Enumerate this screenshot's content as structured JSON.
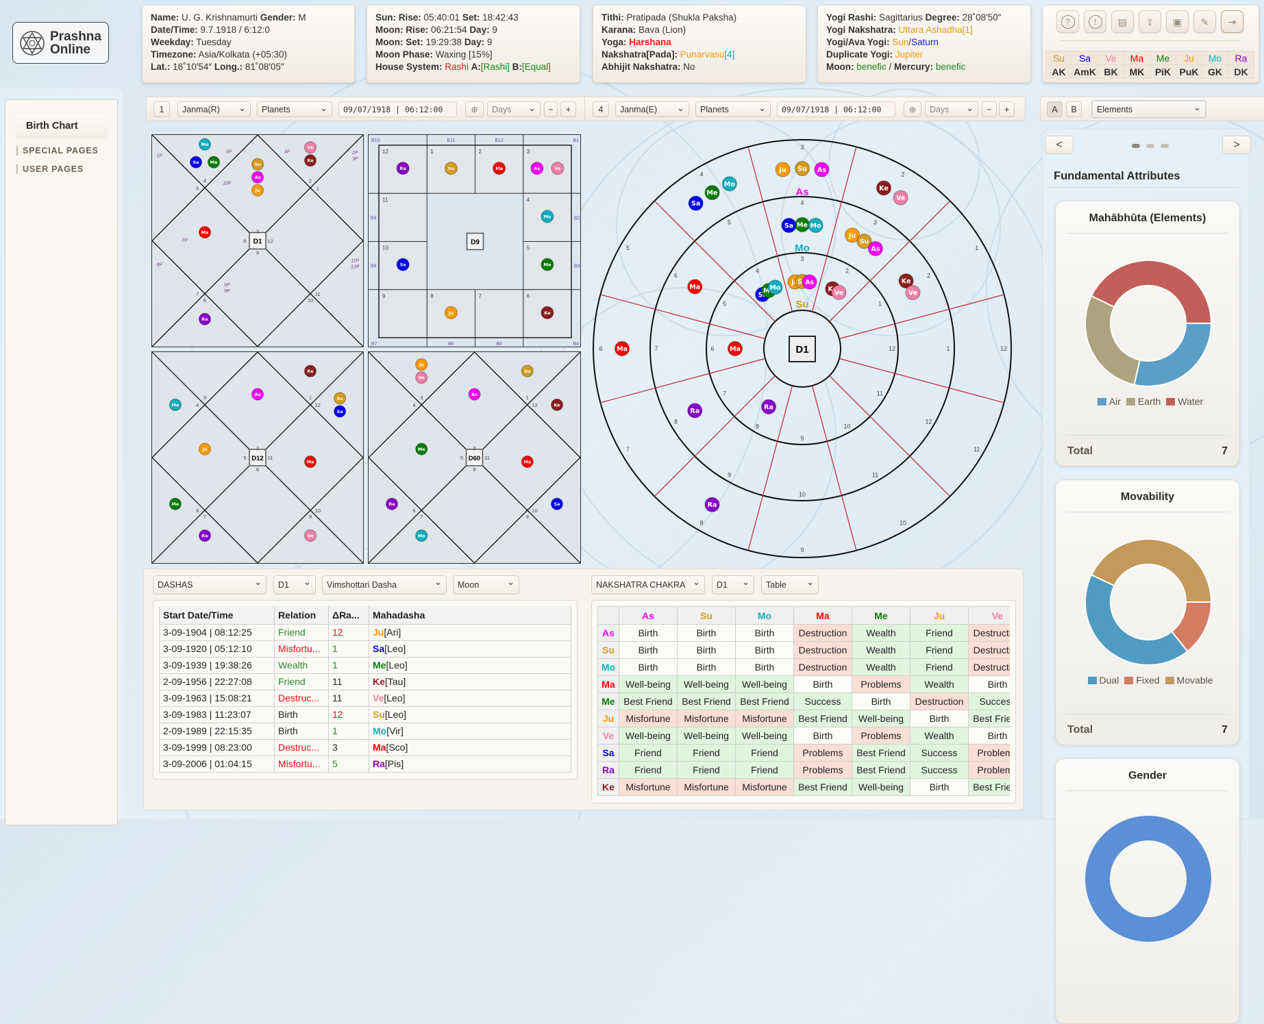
{
  "logo": {
    "line1": "Prashna",
    "line2": "Online"
  },
  "info_cards": [
    [
      [
        {
          "text": "Name:",
          "bold": true
        },
        {
          "text": " U. G. Krishnamurti "
        },
        {
          "text": "Gender:",
          "bold": true
        },
        {
          "text": " M"
        }
      ],
      [
        {
          "text": "Date/Time:",
          "bold": true
        },
        {
          "text": " 9.7.1918 / 6:12:0"
        }
      ],
      [
        {
          "text": "Weekday:",
          "bold": true
        },
        {
          "text": " Tuesday"
        }
      ],
      [
        {
          "text": "Timezone:",
          "bold": true
        },
        {
          "text": " Asia/Kolkata (+05:30)"
        }
      ],
      [
        {
          "text": "Lat.:",
          "bold": true
        },
        {
          "text": " 16˚10′54″ "
        },
        {
          "text": "Long.:",
          "bold": true
        },
        {
          "text": " 81˚08′05″"
        }
      ]
    ],
    [
      [
        {
          "text": "Sun: Rise:",
          "bold": true
        },
        {
          "text": " 05:40:01 "
        },
        {
          "text": "Set:",
          "bold": true
        },
        {
          "text": " 18:42:43"
        }
      ],
      [
        {
          "text": "Moon: Rise:",
          "bold": true
        },
        {
          "text": " 06:21:54 "
        },
        {
          "text": "Day:",
          "bold": true
        },
        {
          "text": " 9"
        }
      ],
      [
        {
          "text": "Moon: Set:",
          "bold": true
        },
        {
          "text": " 19:29:38 "
        },
        {
          "text": "Day:",
          "bold": true
        },
        {
          "text": " 9"
        }
      ],
      [
        {
          "text": "Moon Phase:",
          "bold": true
        },
        {
          "text": " Waxing [15%]"
        }
      ],
      [
        {
          "text": "House System:",
          "bold": true
        },
        {
          "text": " Rashi ",
          "color": "#d42020"
        },
        {
          "text": "A:",
          "bold": true
        },
        {
          "text": "[Rashi]",
          "color": "#138a13"
        },
        {
          "text": " B:",
          "bold": true
        },
        {
          "text": "[Equal]",
          "color": "#138a13"
        }
      ]
    ],
    [
      [
        {
          "text": "Tithi:",
          "bold": true
        },
        {
          "text": " Pratipada (Shukla Paksha)"
        }
      ],
      [
        {
          "text": "Karana:",
          "bold": true
        },
        {
          "text": " Bava (Lion)"
        }
      ],
      [
        {
          "text": "Yoga:",
          "bold": true
        },
        {
          "text": " Harshana",
          "bold": true,
          "color": "#ff1a1a"
        }
      ],
      [
        {
          "text": "Nakshatra[Pada]:",
          "bold": true
        },
        {
          "text": " Punarvasu",
          "color": "#f39c12"
        },
        {
          "text": "[4]",
          "color": "#17a2b8"
        }
      ],
      [
        {
          "text": "Abhijit Nakshatra:",
          "bold": true
        },
        {
          "text": " No"
        }
      ]
    ],
    [
      [
        {
          "text": "Yogi Rashi:",
          "bold": true
        },
        {
          "text": " Sagittarius "
        },
        {
          "text": "Degree:",
          "bold": true
        },
        {
          "text": " 28˚08′50″"
        }
      ],
      [
        {
          "text": "Yogi Nakshatra:",
          "bold": true
        },
        {
          "text": " Uttara Ashadha",
          "color": "#e69a12"
        },
        {
          "text": "[1]",
          "color": "#e69a12"
        }
      ],
      [
        {
          "text": "Yogi/Ava Yogi:",
          "bold": true
        },
        {
          "text": " Sun",
          "color": "#e69a12"
        },
        {
          "text": "/"
        },
        {
          "text": "Saturn",
          "color": "#1a1aee"
        }
      ],
      [
        {
          "text": "Duplicate Yogi:",
          "bold": true
        },
        {
          "text": " Jupiter",
          "color": "#f39c12"
        }
      ],
      [
        {
          "text": "Moon:",
          "bold": true
        },
        {
          "text": " benefic",
          "color": "#1e8a1e"
        },
        {
          "text": " / "
        },
        {
          "text": "Mercury:",
          "bold": true
        },
        {
          "text": " benefic",
          "color": "#1e8a1e"
        }
      ]
    ]
  ],
  "tool_icons": [
    "help-icon",
    "info-icon",
    "receipt-icon",
    "folder-upload-icon",
    "save-icon",
    "chat-icon",
    "logout-icon"
  ],
  "karaka": {
    "planets": [
      "Su",
      "Sa",
      "Ve",
      "Ma",
      "Me",
      "Ju",
      "Mo",
      "Ra"
    ],
    "roles": [
      "AK",
      "AmK",
      "BK",
      "MK",
      "PiK",
      "PuK",
      "GK",
      "DK"
    ]
  },
  "sidebar": {
    "active": "Birth Chart",
    "links": [
      "SPECIAL PAGES",
      "USER PAGES"
    ]
  },
  "toolbar": {
    "left": {
      "num": "1",
      "mode": "Janma(R)",
      "objects": "Planets",
      "date": "09/07/1918 | 06:12:00",
      "step": "Days",
      "minus": "−",
      "plus": "+",
      "target": "⊕"
    },
    "right": {
      "num": "4",
      "mode": "Janma(E)",
      "objects": "Planets",
      "date": "09/07/1918 | 06:12:00",
      "step": "Days",
      "minus": "−",
      "plus": "+",
      "target": "⊕"
    },
    "panel": {
      "a": "A",
      "b": "B",
      "select": "Elements"
    }
  },
  "planet_colors": {
    "As": "#ff00ff",
    "Su": "#d49b1c",
    "Mo": "#13aebd",
    "Ma": "#ff0000",
    "Me": "#0a7d0a",
    "Ju": "#ff9a00",
    "Ve": "#f07fa5",
    "Sa": "#0000f0",
    "Ra": "#8800c8",
    "Ke": "#8b1e1e"
  },
  "charts": {
    "d1": {
      "label": "D1",
      "house_signs": [
        3,
        4,
        5,
        6,
        7,
        8,
        9,
        10,
        11,
        12,
        1,
        2
      ],
      "houses": {
        "1": [
          "Su",
          "As",
          "Ju"
        ],
        "2": [
          "Mo",
          "Sa",
          "Me"
        ],
        "4": [
          "Ma"
        ],
        "6": [
          "Ra"
        ],
        "12": [
          "Ve",
          "Ke"
        ]
      },
      "p_labels": [
        "1P",
        "6P",
        "4P",
        "2P",
        "3P",
        "10P",
        "7P",
        "8P",
        "11P",
        "12P",
        "5P",
        "9P"
      ]
    },
    "d9": {
      "label": "D9",
      "signs": {
        "12": [
          "Ra"
        ],
        "1": [
          "Su"
        ],
        "2": [
          "Ma"
        ],
        "3": [
          "As",
          "Ve"
        ],
        "4": [
          "Mo"
        ],
        "5": [
          "Me"
        ],
        "6": [
          "Ke"
        ],
        "8": [
          "Ju"
        ],
        "10": [
          "Sa"
        ]
      },
      "b_labels": [
        "B10",
        "B11",
        "B12",
        "B1",
        "B2",
        "B3",
        "B4",
        "B5",
        "B6",
        "B7",
        "B8",
        "B9"
      ]
    },
    "d12": {
      "label": "D12",
      "house_signs": [
        2,
        3,
        4,
        5,
        6,
        7,
        8,
        9,
        10,
        11,
        12,
        1
      ],
      "houses": {
        "1": [
          "As"
        ],
        "3": [
          "Mo"
        ],
        "4": [
          "Ju"
        ],
        "5": [
          "Me"
        ],
        "6": [
          "Ra"
        ],
        "8": [
          "Ve"
        ],
        "10": [
          "Ma"
        ],
        "11": [
          "Su",
          "Sa"
        ],
        "12": [
          "Ke"
        ]
      }
    },
    "d60": {
      "label": "D60",
      "house_signs": [
        2,
        3,
        4,
        5,
        6,
        7,
        8,
        9,
        10,
        11,
        12,
        1
      ],
      "houses": {
        "1": [
          "As"
        ],
        "2": [
          "Ju",
          "Ve"
        ],
        "4": [
          "Me"
        ],
        "5": [
          "Ra"
        ],
        "6": [
          "Mo"
        ],
        "9": [
          "Sa"
        ],
        "10": [
          "Ma"
        ],
        "11": [
          "Ke"
        ],
        "12": [
          "Su"
        ]
      }
    }
  },
  "circular_chart": {
    "label": "D1",
    "rings": [
      {
        "name": "As",
        "top_sign": 3,
        "signs": {
          "3": [
            "Ju",
            "Su",
            "As"
          ],
          "2": [
            "Ke",
            "Ve"
          ],
          "4": [
            "Sa",
            "Me",
            "Mo"
          ],
          "6": [
            "Ma"
          ],
          "8": [
            "Ra"
          ]
        }
      },
      {
        "name": "Mo",
        "top_sign": 4,
        "signs": {
          "4": [
            "Sa",
            "Me",
            "Mo"
          ],
          "3": [
            "Ju",
            "Su",
            "As"
          ],
          "2": [
            "Ke",
            "Ve"
          ],
          "6": [
            "Ma"
          ],
          "8": [
            "Ra"
          ]
        }
      },
      {
        "name": "Su",
        "top_sign": 3,
        "signs": {
          "4": [
            "Sa",
            "Me",
            "Mo"
          ],
          "3": [
            "Ju",
            "Su",
            "As"
          ],
          "2": [
            "Ke",
            "Ve"
          ],
          "6": [
            "Ma"
          ],
          "8": [
            "Ra"
          ]
        }
      }
    ]
  },
  "dashas": {
    "selects": [
      "DASHAS",
      "D1",
      "Vimshottari Dasha",
      "Moon"
    ],
    "columns": [
      "Start Date/Time",
      "Relation",
      "ΔRa...",
      "Mahadasha"
    ],
    "rows": [
      {
        "start": "3-09-1904 | 08:12:25",
        "relation": "Friend",
        "rel_color": "#2a8a2a",
        "delta": "12",
        "delta_color": "#ee1111",
        "planet": "Ju",
        "sign": "[Ari]"
      },
      {
        "start": "3-09-1920 | 05:12:10",
        "relation": "Misfortu...",
        "rel_color": "#ee1111",
        "delta": "1",
        "delta_color": "#2a8a2a",
        "planet": "Sa",
        "sign": "[Leo]"
      },
      {
        "start": "3-09-1939 | 19:38:26",
        "relation": "Wealth",
        "rel_color": "#2a8a2a",
        "delta": "1",
        "delta_color": "#2a8a2a",
        "planet": "Me",
        "sign": "[Leo]"
      },
      {
        "start": "2-09-1956 | 22:27:08",
        "relation": "Friend",
        "rel_color": "#2a8a2a",
        "delta": "11",
        "delta_color": "#222222",
        "planet": "Ke",
        "sign": "[Tau]"
      },
      {
        "start": "3-09-1963 | 15:08:21",
        "relation": "Destruc...",
        "rel_color": "#ee1111",
        "delta": "11",
        "delta_color": "#222222",
        "planet": "Ve",
        "sign": "[Leo]"
      },
      {
        "start": "3-09-1983 | 11:23:07",
        "relation": "Birth",
        "rel_color": "#222222",
        "delta": "12",
        "delta_color": "#ee1111",
        "planet": "Su",
        "sign": "[Leo]"
      },
      {
        "start": "2-09-1989 | 22:15:35",
        "relation": "Birth",
        "rel_color": "#222222",
        "delta": "1",
        "delta_color": "#2a8a2a",
        "planet": "Mo",
        "sign": "[Vir]"
      },
      {
        "start": "3-09-1999 | 08:23:00",
        "relation": "Destruc...",
        "rel_color": "#ee1111",
        "delta": "3",
        "delta_color": "#222222",
        "planet": "Ma",
        "sign": "[Sco]"
      },
      {
        "start": "3-09-2006 | 01:04:15",
        "relation": "Misfortu...",
        "rel_color": "#ee1111",
        "delta": "5",
        "delta_color": "#2a8a2a",
        "planet": "Ra",
        "sign": "[Pis]"
      }
    ]
  },
  "nakshatra": {
    "selects": [
      "NAKSHATRA CHAKRA",
      "D1",
      "Table"
    ],
    "columns": [
      "As",
      "Su",
      "Mo",
      "Ma",
      "Me",
      "Ju",
      "Ve"
    ],
    "rows": [
      {
        "planet": "As",
        "cells": [
          "Birth",
          "Birth",
          "Birth",
          "Destruction",
          "Wealth",
          "Friend",
          "Destruction"
        ]
      },
      {
        "planet": "Su",
        "cells": [
          "Birth",
          "Birth",
          "Birth",
          "Destruction",
          "Wealth",
          "Friend",
          "Destruction"
        ]
      },
      {
        "planet": "Mo",
        "cells": [
          "Birth",
          "Birth",
          "Birth",
          "Destruction",
          "Wealth",
          "Friend",
          "Destruction"
        ]
      },
      {
        "planet": "Ma",
        "cells": [
          "Well-being",
          "Well-being",
          "Well-being",
          "Birth",
          "Problems",
          "Wealth",
          "Birth"
        ]
      },
      {
        "planet": "Me",
        "cells": [
          "Best Friend",
          "Best Friend",
          "Best Friend",
          "Success",
          "Birth",
          "Destruction",
          "Success"
        ]
      },
      {
        "planet": "Ju",
        "cells": [
          "Misfortune",
          "Misfortune",
          "Misfortune",
          "Best Friend",
          "Well-being",
          "Birth",
          "Best Friend"
        ]
      },
      {
        "planet": "Ve",
        "cells": [
          "Well-being",
          "Well-being",
          "Well-being",
          "Birth",
          "Problems",
          "Wealth",
          "Birth"
        ]
      },
      {
        "planet": "Sa",
        "cells": [
          "Friend",
          "Friend",
          "Friend",
          "Problems",
          "Best Friend",
          "Success",
          "Problems"
        ]
      },
      {
        "planet": "Ra",
        "cells": [
          "Friend",
          "Friend",
          "Friend",
          "Problems",
          "Best Friend",
          "Success",
          "Problems"
        ]
      },
      {
        "planet": "Ke",
        "cells": [
          "Misfortune",
          "Misfortune",
          "Misfortune",
          "Best Friend",
          "Well-being",
          "Birth",
          "Best Friend"
        ]
      }
    ]
  },
  "right_panel": {
    "prev": "<",
    "next": ">",
    "page_dots": 3,
    "active_dot": 0,
    "title": "Fundamental Attributes",
    "cards": [
      {
        "title": "Mahābhūta (Elements)",
        "total_label": "Total",
        "total": "7",
        "segments": [
          {
            "label": "Air",
            "value": 2,
            "color": "#5b9ec6"
          },
          {
            "label": "Earth",
            "value": 2,
            "color": "#aea37e"
          },
          {
            "label": "Water",
            "value": 3,
            "color": "#c25f5a"
          }
        ]
      },
      {
        "title": "Movability",
        "total_label": "Total",
        "total": "7",
        "segments": [
          {
            "label": "Dual",
            "value": 3,
            "color": "#4f9bc2"
          },
          {
            "label": "Fixed",
            "value": 1,
            "color": "#d57c64"
          },
          {
            "label": "Movable",
            "value": 3,
            "color": "#c49a5c"
          }
        ]
      },
      {
        "title": "Gender"
      }
    ]
  }
}
